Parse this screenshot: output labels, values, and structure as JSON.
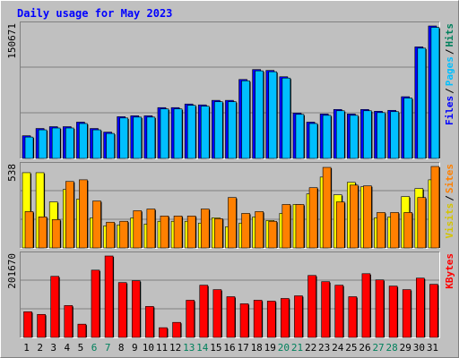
{
  "title": "Daily usage for May 2023",
  "chart_data": [
    {
      "type": "bar",
      "yticks": [
        150671
      ],
      "ylim": [
        0,
        150671
      ],
      "separator": "/",
      "extra_label": {
        "text": "Hits",
        "color": "#00805c"
      },
      "series": [
        {
          "name": "Files",
          "color": "#0000ff",
          "values": [
            25800,
            34060,
            36120,
            36120,
            41280,
            34060,
            29930,
            47470,
            48500,
            48500,
            57800,
            57800,
            61900,
            60900,
            66050,
            66050,
            89800,
            101100,
            100100,
            92900,
            51600,
            41280,
            50570,
            55700,
            50570,
            55700,
            53660,
            54700,
            70200,
            126900,
            150671
          ]
        },
        {
          "name": "Pages",
          "color": "#00bfff",
          "values": [
            24300,
            32500,
            34600,
            34600,
            39700,
            32500,
            28400,
            46000,
            47000,
            47000,
            56300,
            56300,
            60400,
            59400,
            64500,
            64500,
            88300,
            99600,
            98600,
            91400,
            50100,
            39700,
            49000,
            54200,
            49000,
            54200,
            52100,
            53200,
            68700,
            125400,
            149100
          ]
        }
      ]
    },
    {
      "type": "bar",
      "yticks": [
        538
      ],
      "ylim": [
        0,
        538
      ],
      "separator": "/",
      "series": [
        {
          "name": "Visits",
          "color": "#ffff00",
          "values": [
            497,
            497,
            304,
            386,
            322,
            199,
            146,
            152,
            199,
            158,
            176,
            176,
            176,
            164,
            199,
            140,
            164,
            205,
            181,
            228,
            287,
            357,
            468,
            351,
            433,
            404,
            199,
            205,
            339,
            392,
            450
          ]
        },
        {
          "name": "Sites",
          "color": "#ff8000",
          "values": [
            240,
            205,
            187,
            439,
            450,
            310,
            170,
            176,
            246,
            257,
            211,
            211,
            211,
            257,
            193,
            333,
            228,
            240,
            176,
            287,
            287,
            398,
            532,
            304,
            415,
            410,
            234,
            234,
            234,
            333,
            538
          ]
        }
      ]
    },
    {
      "type": "bar",
      "yticks": [
        201670
      ],
      "ylim": [
        0,
        201670
      ],
      "categories": [
        "1",
        "2",
        "3",
        "4",
        "5",
        "6",
        "7",
        "8",
        "9",
        "10",
        "11",
        "12",
        "13",
        "14",
        "15",
        "16",
        "17",
        "18",
        "19",
        "20",
        "21",
        "22",
        "23",
        "24",
        "25",
        "26",
        "27",
        "28",
        "29",
        "30",
        "31"
      ],
      "category_colors": [
        "#000000",
        "#000000",
        "#000000",
        "#000000",
        "#000000",
        "#00805c",
        "#00805c",
        "#000000",
        "#000000",
        "#000000",
        "#000000",
        "#000000",
        "#00805c",
        "#00805c",
        "#000000",
        "#000000",
        "#000000",
        "#000000",
        "#000000",
        "#00805c",
        "#00805c",
        "#000000",
        "#000000",
        "#000000",
        "#000000",
        "#000000",
        "#00805c",
        "#00805c",
        "#000000",
        "#000000",
        "#000000"
      ],
      "series": [
        {
          "name": "KBytes",
          "color": "#ff0000",
          "values": [
            63570,
            56990,
            151250,
            78910,
            32880,
            166590,
            201670,
            135900,
            140290,
            76720,
            24110,
            37260,
            92060,
            129330,
            118370,
            100830,
            83300,
            92060,
            89870,
            96450,
            103020,
            153440,
            138100,
            129330,
            100830,
            157820,
            142480,
            127140,
            118370,
            146860,
            131520
          ]
        }
      ]
    }
  ]
}
